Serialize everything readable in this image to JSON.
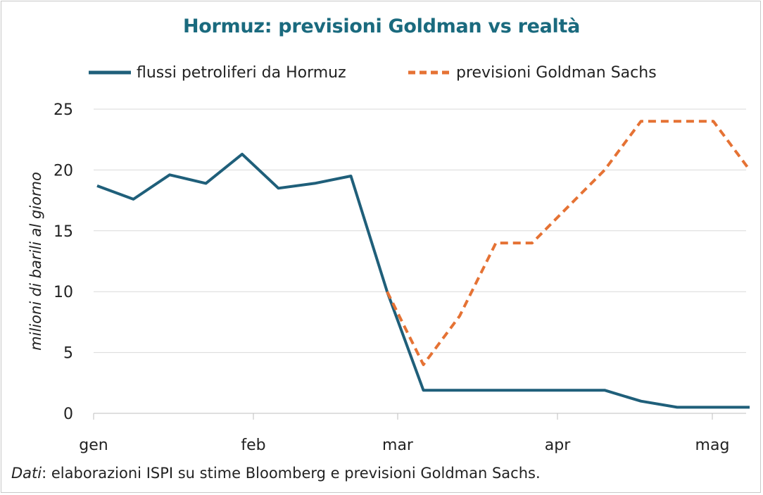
{
  "chart_data": {
    "type": "line",
    "title": "Hormuz: previsioni Goldman vs realtà",
    "ylabel": "milioni di barili al giorno",
    "ylim": [
      0,
      25
    ],
    "yticks": [
      "0",
      "5",
      "10",
      "15",
      "20",
      "25"
    ],
    "xticks": [
      "gen",
      "feb",
      "mar",
      "apr",
      "mag"
    ],
    "legend_position": "top",
    "grid": true,
    "series": [
      {
        "name": "flussi petroliferi da Hormuz",
        "color": "#1f5f7a",
        "style": "solid",
        "points": [
          [
            0,
            18.7
          ],
          [
            1,
            17.6
          ],
          [
            2,
            19.6
          ],
          [
            3,
            18.9
          ],
          [
            4,
            21.3
          ],
          [
            5,
            18.5
          ],
          [
            6,
            18.9
          ],
          [
            7,
            19.5
          ],
          [
            8,
            10
          ],
          [
            9,
            1.9
          ],
          [
            10,
            1.9
          ],
          [
            11,
            1.9
          ],
          [
            12,
            1.9
          ],
          [
            13,
            1.9
          ],
          [
            14,
            1.9
          ],
          [
            15,
            1.0
          ],
          [
            16,
            0.5
          ],
          [
            17,
            0.5
          ],
          [
            18,
            0.5
          ]
        ]
      },
      {
        "name": "previsioni Goldman Sachs",
        "color": "#e57234",
        "style": "dashed",
        "points": [
          [
            8,
            10
          ],
          [
            9,
            4
          ],
          [
            10,
            8
          ],
          [
            11,
            14
          ],
          [
            12,
            14
          ],
          [
            13,
            17
          ],
          [
            14,
            20
          ],
          [
            15,
            24
          ],
          [
            16,
            24
          ],
          [
            17,
            24
          ],
          [
            18,
            20
          ]
        ]
      }
    ]
  },
  "source": {
    "prefix": "Dati",
    "text": ": elaborazioni ISPI su stime Bloomberg e previsioni Goldman Sachs."
  }
}
